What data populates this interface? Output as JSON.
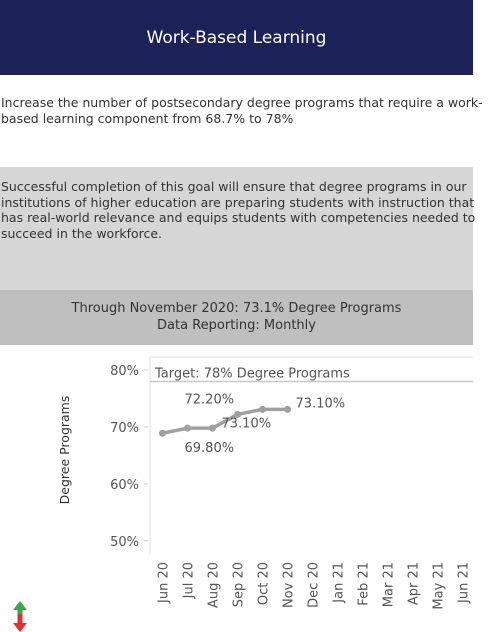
{
  "header": {
    "title": "Work-Based Learning"
  },
  "goal": "Increase the number of postsecondary degree programs that require a work-based learning component from 68.7% to 78%",
  "description": "Successful completion of this goal will ensure that degree programs in our institutions of higher education are preparing students with instruction that has real-world relevance and equips students with competencies needed to succeed in the workforce.",
  "status": {
    "line1": "Through November 2020: 73.1% Degree Programs",
    "line2": "Data Reporting: Monthly"
  },
  "chart_data": {
    "type": "line",
    "y_label": "Degree Programs",
    "categories": [
      "Jun 20",
      "Jul 20",
      "Aug 20",
      "Sep 20",
      "Oct 20",
      "Nov 20",
      "Dec 20",
      "Jan 21",
      "Feb 21",
      "Mar 21",
      "Apr 21",
      "May 21",
      "Jun 21"
    ],
    "series": [
      {
        "name": "Degree Programs",
        "color": "#a0a0a0",
        "values": [
          68.9,
          69.8,
          69.8,
          72.2,
          73.1,
          73.1,
          null,
          null,
          null,
          null,
          null,
          null,
          null
        ],
        "value_labels": [
          null,
          null,
          "69.80%",
          "72.20%",
          "73.10%",
          "73.10%",
          null,
          null,
          null,
          null,
          null,
          null,
          null
        ]
      }
    ],
    "target": 78,
    "target_label": "Target: 78% Degree Programs",
    "ylim": [
      47.5,
      82.3
    ],
    "yticks": [
      {
        "value": 50,
        "label": "50%"
      },
      {
        "value": 60,
        "label": "60%"
      },
      {
        "value": 70,
        "label": "70%"
      },
      {
        "value": 80,
        "label": "80%"
      }
    ]
  }
}
